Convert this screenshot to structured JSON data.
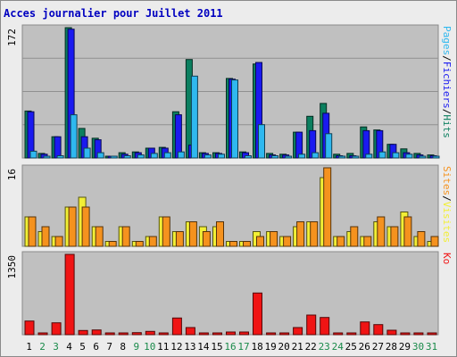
{
  "chart_data": [
    {
      "type": "bar",
      "title": "Acces journalier pour Juillet 2011",
      "categories": [
        "1",
        "2",
        "3",
        "4",
        "5",
        "6",
        "7",
        "8",
        "9",
        "10",
        "11",
        "12",
        "13",
        "14",
        "15",
        "16",
        "17",
        "18",
        "19",
        "20",
        "21",
        "22",
        "23",
        "24",
        "25",
        "26",
        "27",
        "28",
        "29",
        "30",
        "31"
      ],
      "weekend_days": [
        "2",
        "3",
        "9",
        "10",
        "16",
        "17",
        "23",
        "24",
        "30",
        "31"
      ],
      "ymax_label": "172",
      "ymax": 172,
      "right_axis_labels": [
        "Pages",
        "/",
        "Fichiers",
        "/",
        "Hits"
      ],
      "series": [
        {
          "name": "Hits",
          "color": "#0b7f5f",
          "values": [
            62,
            6,
            28,
            172,
            39,
            26,
            2,
            7,
            8,
            13,
            14,
            61,
            130,
            7,
            7,
            105,
            8,
            124,
            6,
            5,
            34,
            55,
            72,
            5,
            6,
            41,
            37,
            18,
            12,
            6,
            4
          ]
        },
        {
          "name": "Fichiers",
          "color": "#1a1af0",
          "values": [
            61,
            5,
            28,
            170,
            28,
            24,
            1,
            5,
            7,
            13,
            13,
            57,
            17,
            6,
            6,
            104,
            7,
            126,
            4,
            4,
            34,
            36,
            59,
            3,
            3,
            36,
            36,
            18,
            7,
            4,
            3
          ]
        },
        {
          "name": "Pages",
          "color": "#2fb8ef",
          "values": [
            9,
            2,
            3,
            57,
            13,
            7,
            1,
            3,
            4,
            6,
            7,
            8,
            108,
            4,
            5,
            103,
            3,
            44,
            3,
            2,
            5,
            7,
            32,
            2,
            2,
            5,
            8,
            7,
            5,
            2,
            2
          ]
        }
      ]
    },
    {
      "type": "bar",
      "categories": [
        "1",
        "2",
        "3",
        "4",
        "5",
        "6",
        "7",
        "8",
        "9",
        "10",
        "11",
        "12",
        "13",
        "14",
        "15",
        "16",
        "17",
        "18",
        "19",
        "20",
        "21",
        "22",
        "23",
        "24",
        "25",
        "26",
        "27",
        "28",
        "29",
        "30",
        "31"
      ],
      "ymax_label": "16",
      "ymax": 16,
      "right_axis_labels": [
        "Sites",
        "/",
        "Visites"
      ],
      "series": [
        {
          "name": "Visites",
          "color": "#f2ef35",
          "values": [
            6,
            3,
            2,
            8,
            10,
            4,
            1,
            4,
            1,
            2,
            6,
            3,
            5,
            4,
            4,
            1,
            1,
            3,
            3,
            2,
            4,
            5,
            14,
            2,
            3,
            2,
            5,
            4,
            7,
            2,
            1
          ]
        },
        {
          "name": "Sites",
          "color": "#f5921e",
          "values": [
            6,
            4,
            2,
            8,
            8,
            4,
            1,
            4,
            1,
            2,
            6,
            3,
            5,
            3,
            5,
            1,
            1,
            2,
            3,
            2,
            5,
            5,
            16,
            2,
            4,
            2,
            6,
            4,
            6,
            3,
            2
          ]
        }
      ]
    },
    {
      "type": "bar",
      "categories": [
        "1",
        "2",
        "3",
        "4",
        "5",
        "6",
        "7",
        "8",
        "9",
        "10",
        "11",
        "12",
        "13",
        "14",
        "15",
        "16",
        "17",
        "18",
        "19",
        "20",
        "21",
        "22",
        "23",
        "24",
        "25",
        "26",
        "27",
        "28",
        "29",
        "30",
        "31"
      ],
      "ymax_label": "1350",
      "ymax": 1350,
      "right_axis_labels": [
        "Ko"
      ],
      "series": [
        {
          "name": "Ko",
          "color": "#f01414",
          "values": [
            230,
            12,
            200,
            1350,
            70,
            80,
            12,
            20,
            35,
            55,
            12,
            280,
            120,
            12,
            15,
            45,
            45,
            700,
            10,
            15,
            120,
            330,
            290,
            12,
            12,
            215,
            170,
            75,
            20,
            10,
            12
          ]
        }
      ]
    }
  ]
}
